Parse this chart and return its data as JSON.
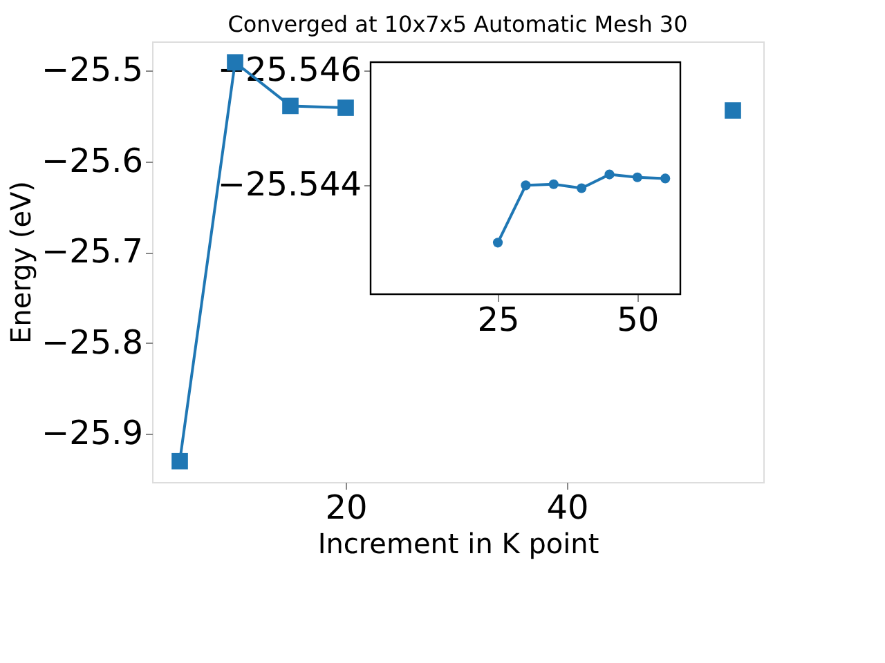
{
  "chart_data": [
    {
      "type": "line",
      "title": "Converged at 10x7x5 Automatic Mesh 30",
      "xlabel": "Increment in K point",
      "ylabel": "Energy (eV)",
      "x": [
        5,
        10,
        15,
        20,
        25,
        30,
        35,
        40,
        45,
        50,
        55
      ],
      "series": [
        {
          "color": "#1f77b4",
          "values": [
            -25.93,
            -25.491,
            -25.539,
            -25.541,
            null,
            null,
            null,
            null,
            null,
            null,
            -25.544
          ]
        }
      ],
      "xlim": [
        2.5,
        57.75
      ],
      "xticks": [
        20,
        40
      ],
      "ylim": [
        -25.953,
        -25.468
      ],
      "yticks": [
        -25.9,
        -25.8,
        -25.7,
        -25.6,
        -25.5
      ],
      "marker": "square",
      "grid": false,
      "legend": false
    },
    {
      "type": "line",
      "x": [
        25,
        30,
        35,
        40,
        45,
        50,
        55
      ],
      "series": [
        {
          "color": "#1f77b4",
          "values": [
            -25.543,
            -25.544,
            -25.54402,
            -25.54395,
            -25.54419,
            -25.54414,
            -25.54412
          ]
        }
      ],
      "xlim": [
        2.2,
        57.7
      ],
      "xticks": [
        25,
        50
      ],
      "ylim": [
        -25.5421,
        -25.54615
      ],
      "yticks": [
        -25.546,
        -25.544
      ],
      "marker": "circle",
      "grid": false,
      "legend": false
    }
  ]
}
